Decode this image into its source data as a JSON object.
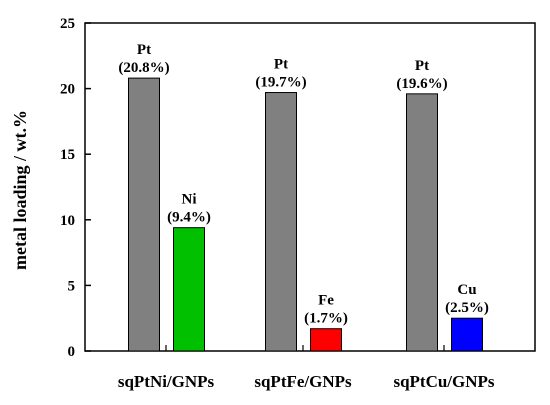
{
  "chart_data": {
    "type": "bar",
    "title": "",
    "xlabel": "",
    "ylabel": "metal loading / wt.%",
    "ylim": [
      0,
      25
    ],
    "yticks": [
      0,
      5,
      10,
      15,
      20,
      25
    ],
    "categories": [
      "sqPtNi/GNPs",
      "sqPtFe/GNPs",
      "sqPtCu/GNPs"
    ],
    "bars": [
      {
        "category": "sqPtNi/GNPs",
        "metal": "Pt",
        "label": "(20.8%)",
        "value": 20.8,
        "color": "#808080"
      },
      {
        "category": "sqPtNi/GNPs",
        "metal": "Ni",
        "label": "(9.4%)",
        "value": 9.4,
        "color": "#00c000"
      },
      {
        "category": "sqPtFe/GNPs",
        "metal": "Pt",
        "label": "(19.7%)",
        "value": 19.7,
        "color": "#808080"
      },
      {
        "category": "sqPtFe/GNPs",
        "metal": "Fe",
        "label": "(1.7%)",
        "value": 1.7,
        "color": "#ff0000"
      },
      {
        "category": "sqPtCu/GNPs",
        "metal": "Pt",
        "label": "(19.6%)",
        "value": 19.6,
        "color": "#808080"
      },
      {
        "category": "sqPtCu/GNPs",
        "metal": "Cu",
        "label": "(2.5%)",
        "value": 2.5,
        "color": "#0000ff"
      }
    ],
    "grid": false,
    "legend": "none"
  }
}
